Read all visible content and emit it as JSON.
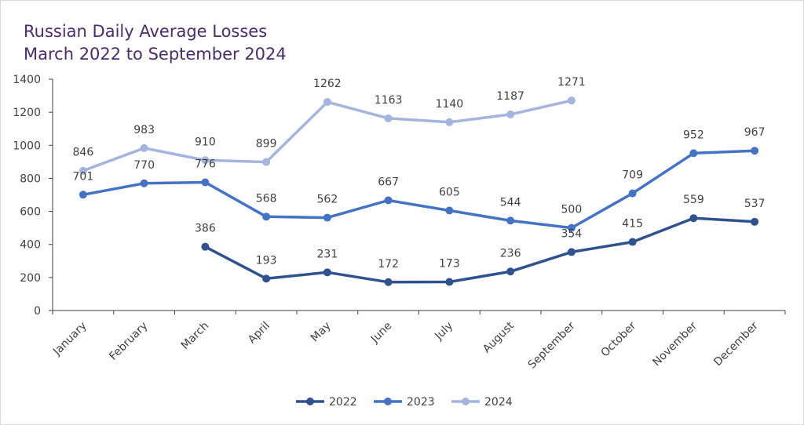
{
  "chart_data": {
    "type": "line",
    "title_line1": "Russian Daily Average Losses",
    "title_line2": "March 2022 to September 2024",
    "categories": [
      "January",
      "February",
      "March",
      "April",
      "May",
      "June",
      "July",
      "August",
      "September",
      "October",
      "November",
      "December"
    ],
    "ylim": [
      0,
      1400
    ],
    "yticks": [
      0,
      200,
      400,
      600,
      800,
      1000,
      1200,
      1400
    ],
    "grid": false,
    "legend_position": "bottom",
    "series": [
      {
        "name": "2022",
        "color": "#2f528f",
        "values": [
          null,
          null,
          386,
          193,
          231,
          172,
          173,
          236,
          354,
          415,
          559,
          537
        ]
      },
      {
        "name": "2023",
        "color": "#4472c4",
        "values": [
          701,
          770,
          776,
          568,
          562,
          667,
          605,
          544,
          500,
          709,
          952,
          967
        ]
      },
      {
        "name": "2024",
        "color": "#a5b4dc",
        "values": [
          846,
          983,
          910,
          899,
          1262,
          1163,
          1140,
          1187,
          1271,
          null,
          null,
          null
        ]
      }
    ]
  }
}
